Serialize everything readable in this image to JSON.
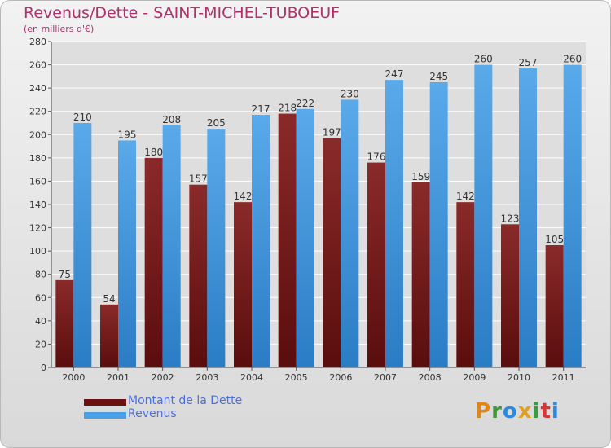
{
  "header": {
    "title": "Revenus/Dette - SAINT-MICHEL-TUBOEUF",
    "subtitle": "(en milliers d'€)"
  },
  "legend": {
    "items": [
      {
        "label": "Montant de la Dette",
        "color": "#7a1a1a"
      },
      {
        "label": "Revenus",
        "color": "#4aa0e6"
      }
    ]
  },
  "logo": {
    "text": "Proxiti",
    "colors": [
      "#e0851a",
      "#3c9c3c",
      "#2a8adf",
      "#e0a020",
      "#3c9c3c",
      "#d23a3a",
      "#2a8adf"
    ]
  },
  "chart_data": {
    "type": "bar",
    "categories": [
      "2000",
      "2001",
      "2002",
      "2003",
      "2004",
      "2005",
      "2006",
      "2007",
      "2008",
      "2009",
      "2010",
      "2011"
    ],
    "series": [
      {
        "name": "Montant de la Dette",
        "values": [
          75,
          54,
          180,
          157,
          142,
          218,
          197,
          176,
          159,
          142,
          123,
          105
        ],
        "color": "#7a1a1a"
      },
      {
        "name": "Revenus",
        "values": [
          210,
          195,
          208,
          205,
          217,
          222,
          230,
          247,
          245,
          260,
          257,
          260
        ],
        "color": "#4aa0e6"
      }
    ],
    "title": "Revenus/Dette - SAINT-MICHEL-TUBOEUF",
    "subtitle": "(en milliers d'€)",
    "ylim": [
      0,
      280
    ],
    "yticks": [
      0,
      20,
      40,
      60,
      80,
      100,
      120,
      140,
      160,
      180,
      200,
      220,
      240,
      260,
      280
    ],
    "grid": true,
    "legend_position": "bottom-left"
  }
}
